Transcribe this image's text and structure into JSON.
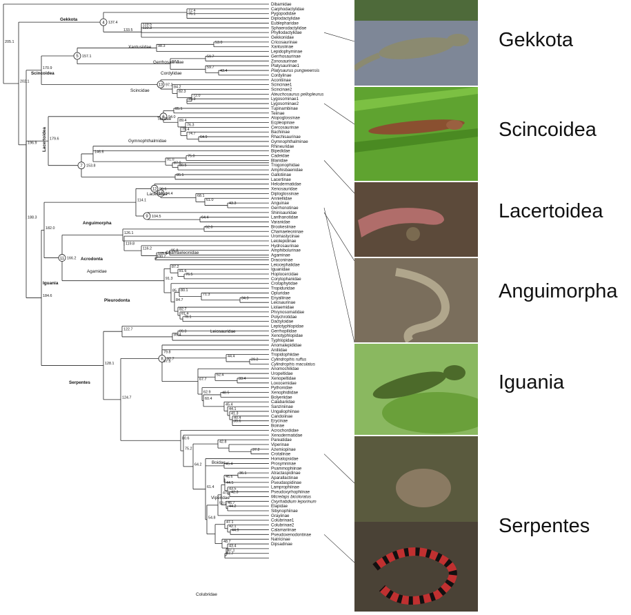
{
  "groups": [
    {
      "label": "Gekkota",
      "color": "#6d7a5e"
    },
    {
      "label": "Scincoidea",
      "color": "#4f8f2c"
    },
    {
      "label": "Lacertoidea",
      "color": "#6b4a3c"
    },
    {
      "label": "Anguimorpha",
      "color": "#7d7566"
    },
    {
      "label": "Iguania",
      "color": "#5d9a3a"
    },
    {
      "label": "Serpentes",
      "color": "#5a4a3c"
    }
  ],
  "root_age": "205.1",
  "taxa": [
    "Dibamidae",
    "Carphodactylidae",
    "Pygopodidae",
    "Diplodactylidae",
    "Eublepharidae",
    "Sphaerodactylidae",
    "Phyllodactylidae",
    "Gekkonidae",
    "Cricosaurinae",
    "Xantusiinae",
    "Lepidophyminae",
    "Gerrhosaurinae",
    "Zonosaurinae",
    "Platysaurinae1",
    "Platysaurus pungweensis",
    "Cordylinae",
    "Acontiinae",
    "Scincinae1",
    "Scincinae2",
    "Ateuchosaurus pellopleurus",
    "Lygosominae1",
    "Lygosominae2",
    "Tupinambinae",
    "Teiinae",
    "Alopoglossinae",
    "Ecpleopinae",
    "Cercosaurinae",
    "Bachiinae",
    "Rhachisaurinae",
    "Gymnophthalminae",
    "Rhineuridae",
    "Bipedidae",
    "Cadeidae",
    "Blanidae",
    "Trogonophidae",
    "Amphisbaenidae",
    "Gallotiinae",
    "Lacertinae",
    "Helodermatidae",
    "Xenosauridae",
    "Diploglossinae",
    "Anniellidae",
    "Anguinae",
    "Gerrhonotinae",
    "Shinisauridae",
    "Lanthanotidae",
    "Varanidae",
    "Brookesiinae",
    "Chamaeleoninae",
    "Uromastycinae",
    "Leiolepidinae",
    "Hydrosaurinae",
    "Amphibolurinae",
    "Agaminae",
    "Draconinae",
    "Leiocephalidae",
    "Iguanidae",
    "Hoplocercidae",
    "Corytophanidae",
    "Crotaphytidae",
    "Tropiduridae",
    "Opluridae",
    "Enyaliinae",
    "Leiosaurinae",
    "Liolaemidae",
    "Phrynosomatidae",
    "Polychrotidae",
    "Dactyloidae",
    "Leptotyphlopidae",
    "Gerrhopilidae",
    "Xenotyphlopidae",
    "Typhlopidae",
    "Anomalepididae",
    "Aniliidae",
    "Tropidophiidae",
    "Cylindrophis ruffus",
    "Cylindrophis maculatus",
    "Anomochilidae",
    "Uropeltidae",
    "Xenopeltidae",
    "Loxocemidae",
    "Pythonidae",
    "Xenophidiidae",
    "Bolyeriidae",
    "Calabariidae",
    "Sanziniinae",
    "Ungaliophiinae",
    "Candoiinae",
    "Erycinae",
    "Boinae",
    "Acrochordidae",
    "Xenodermatidae",
    "Pareatidae",
    "Viperinae",
    "Azemiopinae",
    "Crotalinae",
    "Homalopsidae",
    "Prosymninae",
    "Psammophiinae",
    "Atractaspidinae",
    "Aparallactinae",
    "Pseudaspidinae",
    "Lamprophiinae",
    "Pseudoxyrhophiinae",
    "Micrelaps bicoloratus",
    "Oxyrhabdium leporinum",
    "Elapidae",
    "Sibynophiinae",
    "Grayiinae",
    "Colubrinae1",
    "Colubrinae2",
    "Calamariinae",
    "Pseudoxenodontinae",
    "Natricinae",
    "Dipsadinae"
  ],
  "italic_taxa": [
    "Platysaurus pungweensis",
    "Ateuchosaurus pellopleurus",
    "Cylindrophis ruffus",
    "Cylindrophis maculatus",
    "Micrelaps bicoloratus",
    "Oxyrhabdium leporinum"
  ],
  "nodes": {
    "root": {
      "age": "205.1"
    },
    "squamata": {
      "age": "202.1"
    },
    "n1969": {
      "age": "196.9"
    },
    "n1883": {
      "age": "188.3"
    },
    "n1846": {
      "age": "184.6"
    },
    "n1820": {
      "age": "182.0"
    },
    "n1796": {
      "age": "179.6"
    },
    "gekkota": {
      "age": "137.4",
      "circle": "4"
    },
    "g1335": {
      "age": "133.5"
    },
    "g1195": {
      "age": "119.5"
    },
    "g1103": {
      "age": "110.3"
    },
    "g724": {
      "age": "72.4"
    },
    "g761": {
      "age": "76.1"
    },
    "scincoidea": {
      "age": "170.9"
    },
    "n5": {
      "age": "157.1",
      "circle": "5"
    },
    "xantus": {
      "age": "98.3"
    },
    "x530": {
      "age": "53.0"
    },
    "cordy": {
      "age": "87.1"
    },
    "c597a": {
      "age": "59.7"
    },
    "c597b": {
      "age": "59.7"
    },
    "c434": {
      "age": "43.4"
    },
    "scinc": {
      "age": "97.3",
      "circle": "13"
    },
    "s842": {
      "age": "84.2"
    },
    "s823": {
      "age": "82.3"
    },
    "s720": {
      "age": "72.0"
    },
    "s753": {
      "age": "75.3"
    },
    "n6": {
      "age": "94.0",
      "circle": "6"
    },
    "teiid": {
      "age": "85.1"
    },
    "gymno": {
      "age": "89.4"
    },
    "gy763": {
      "age": "76.3"
    },
    "gy794": {
      "age": "79.4"
    },
    "gy747": {
      "age": "74.7"
    },
    "gy649": {
      "age": "64.9"
    },
    "n7": {
      "age": "153.8",
      "circle": "7"
    },
    "amph": {
      "age": "146.6"
    },
    "a910": {
      "age": "91.0"
    },
    "a750": {
      "age": "75.0"
    },
    "a870": {
      "age": "87.0"
    },
    "a805": {
      "age": "80.5"
    },
    "lacert": {
      "age": "85.1"
    },
    "angui": {
      "age": "114.1"
    },
    "n12": {
      "age": "99.6",
      "circle": "12"
    },
    "n10": {
      "age": "94.4",
      "circle": "10"
    },
    "an681": {
      "age": "68.1"
    },
    "an610": {
      "age": "61.0"
    },
    "an433": {
      "age": "43.3"
    },
    "n9": {
      "age": "104.5",
      "circle": "9"
    },
    "an644": {
      "age": "64.4"
    },
    "iguania": {
      "age": "166.2",
      "circle": "11"
    },
    "acrodonta": {
      "age": "126.1"
    },
    "cham": {
      "age": "62.0"
    },
    "ag1198": {
      "age": "119.8"
    },
    "ag1162": {
      "age": "116.2"
    },
    "ag958": {
      "age": "95.8"
    },
    "ag1056": {
      "age": "105.6"
    },
    "ag1007": {
      "age": "100.7"
    },
    "pl913": {
      "age": "91.3"
    },
    "pl816": {
      "age": "81.6"
    },
    "pl872": {
      "age": "87.2"
    },
    "pl765": {
      "age": "76.5"
    },
    "pl857": {
      "age": "85.7"
    },
    "pl847": {
      "age": "84.7"
    },
    "pl801": {
      "age": "80.1"
    },
    "pl713": {
      "age": "71.3"
    },
    "pl343": {
      "age": "34.3"
    },
    "pl827": {
      "age": "82.7"
    },
    "pl814": {
      "age": "81.4"
    },
    "pl781": {
      "age": "78.1"
    },
    "serp": {
      "age": "128.1"
    },
    "sc1227": {
      "age": "122.7"
    },
    "sc890": {
      "age": "89.0"
    },
    "sc854": {
      "age": "85.4"
    },
    "sc1247": {
      "age": "124.7"
    },
    "n8": {
      "age": "92.7",
      "circle": "8"
    },
    "sa798": {
      "age": "79.8"
    },
    "sa875": {
      "age": "87.5"
    },
    "sa444": {
      "age": "44.4"
    },
    "sa292": {
      "age": "29.2"
    },
    "sa247": {
      "age": "24.7"
    },
    "sa677": {
      "age": "67.7"
    },
    "sa524": {
      "age": "52.4"
    },
    "sa334": {
      "age": "33.4"
    },
    "sa629": {
      "age": "62.9"
    },
    "sa604": {
      "age": "60.4"
    },
    "sa485": {
      "age": "48.5"
    },
    "sa454": {
      "age": "45.4"
    },
    "sa441": {
      "age": "44.1"
    },
    "sa413": {
      "age": "41.3"
    },
    "sa404": {
      "age": "40.4"
    },
    "sa396": {
      "age": "39.6"
    },
    "sc806": {
      "age": "80.6"
    },
    "sc752": {
      "age": "75.2"
    },
    "sc642": {
      "age": "64.2"
    },
    "vip428": {
      "age": "42.8"
    },
    "vip372": {
      "age": "37.2"
    },
    "sc614": {
      "age": "61.4"
    },
    "sc454": {
      "age": "45.4"
    },
    "sc548": {
      "age": "54.8"
    },
    "sc479": {
      "age": "47.9"
    },
    "sc466": {
      "age": "46.6"
    },
    "sc361": {
      "age": "36.1"
    },
    "sc445": {
      "age": "44.5"
    },
    "sc435": {
      "age": "43.5"
    },
    "sc423": {
      "age": "42.3"
    },
    "sc530": {
      "age": "53.0"
    },
    "sc467": {
      "age": "46.7"
    },
    "sc442": {
      "age": "44.2"
    },
    "co471": {
      "age": "47.1"
    },
    "co421": {
      "age": "42.1"
    },
    "co449": {
      "age": "44.9"
    },
    "co487": {
      "age": "48.7"
    },
    "co434": {
      "age": "43.4"
    },
    "co471b": {
      "age": "47.1"
    },
    "co477": {
      "age": "47.7"
    }
  },
  "clade_labels": [
    {
      "key": "Gekkota",
      "text": "Gekkota",
      "bold": true
    },
    {
      "key": "Scincoidea",
      "text": "Scincoidea",
      "bold": true
    },
    {
      "key": "Xantusiidae",
      "text": "Xantusiidae",
      "bold": false
    },
    {
      "key": "Gerrhosauridae",
      "text": "Gerrhosauridae",
      "bold": false
    },
    {
      "key": "Cordylidae",
      "text": "Cordylidae",
      "bold": false
    },
    {
      "key": "Scincidae",
      "text": "Scincidae",
      "bold": false
    },
    {
      "key": "Lacertoidea",
      "text": "Lacertoidea",
      "bold": true
    },
    {
      "key": "Teiidae",
      "text": "Teiidae",
      "bold": false
    },
    {
      "key": "Gymnophthalmidae",
      "text": "Gymnophthalmidae",
      "bold": false
    },
    {
      "key": "Lacertidae",
      "text": "Lacertidae",
      "bold": false
    },
    {
      "key": "Anguimorpha",
      "text": "Anguimorpha",
      "bold": true
    },
    {
      "key": "Chamaeleonidae",
      "text": "Chamaeleonidae",
      "bold": false
    },
    {
      "key": "Acrodonta",
      "text": "Acrodonta",
      "bold": true
    },
    {
      "key": "Agamidae",
      "text": "Agamidae",
      "bold": false
    },
    {
      "key": "Iguania",
      "text": "Iguania",
      "bold": true
    },
    {
      "key": "Pleurodonta",
      "text": "Pleurodonta",
      "bold": true
    },
    {
      "key": "Leiosauridae",
      "text": "Leiosauridae",
      "bold": false
    },
    {
      "key": "Serpentes",
      "text": "Serpentes",
      "bold": true
    },
    {
      "key": "Boidae",
      "text": "Boidae",
      "bold": false
    },
    {
      "key": "Viperidae",
      "text": "Viperidae",
      "bold": false
    },
    {
      "key": "Colubridae",
      "text": "Colubridae",
      "bold": false
    }
  ]
}
